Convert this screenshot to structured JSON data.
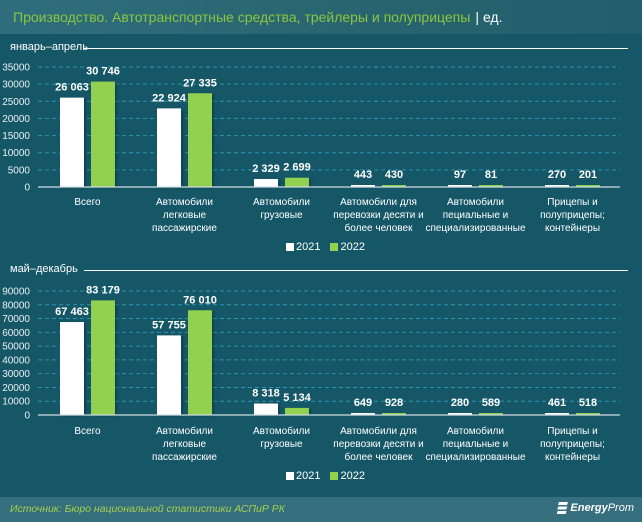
{
  "header": {
    "title": "Производство. Автотранспортные средства, трейлеры и полуприцепы",
    "separator": "|",
    "unit": "ед."
  },
  "legend": [
    {
      "label": "2021",
      "color": "#ffffff"
    },
    {
      "label": "2022",
      "color": "#92d050"
    }
  ],
  "footer": {
    "source": "Источник: Бюро национальной статистики АСПиР РК",
    "brand_part1": "Energy",
    "brand_part2": "Prom"
  },
  "chart_data": [
    {
      "type": "bar",
      "title": "январь–апрель",
      "xlabel": "",
      "ylabel": "",
      "ylim": [
        0,
        35000
      ],
      "ytick_step": 5000,
      "grid": true,
      "legend_position": "bottom",
      "categories": [
        "Всего",
        "Автомобили легковые пассажирские",
        "Автомобили грузовые",
        "Автомобили для перевозки десяти и более человек",
        "Автомобили пециальные и специализированные",
        "Прицепы и полуприцепы; контейнеры"
      ],
      "series": [
        {
          "name": "2021",
          "color": "#ffffff",
          "values": [
            26063,
            22924,
            2329,
            443,
            97,
            270
          ]
        },
        {
          "name": "2022",
          "color": "#92d050",
          "values": [
            30746,
            27335,
            2699,
            430,
            81,
            201
          ]
        }
      ]
    },
    {
      "type": "bar",
      "title": "май–декабрь",
      "xlabel": "",
      "ylabel": "",
      "ylim": [
        0,
        90000
      ],
      "ytick_step": 10000,
      "grid": true,
      "legend_position": "bottom",
      "categories": [
        "Всего",
        "Автомобили легковые пассажирские",
        "Автомобили грузовые",
        "Автомобили для перевозки десяти и более человек",
        "Автомобили пециальные и специализированные",
        "Прицепы и полуприцепы; контейнеры"
      ],
      "series": [
        {
          "name": "2021",
          "color": "#ffffff",
          "values": [
            67463,
            57755,
            8318,
            649,
            280,
            461
          ]
        },
        {
          "name": "2022",
          "color": "#92d050",
          "values": [
            83179,
            76010,
            5134,
            928,
            589,
            518
          ]
        }
      ]
    }
  ]
}
